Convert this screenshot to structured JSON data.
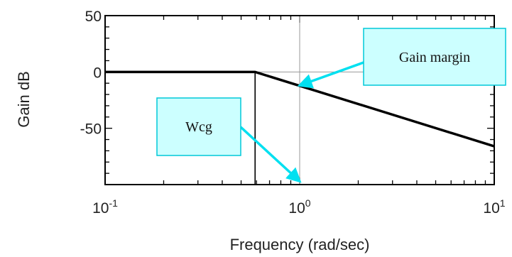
{
  "chart_data": {
    "type": "line",
    "xscale": "log",
    "xlim": [
      0.1,
      10
    ],
    "ylim": [
      -100,
      50
    ],
    "xlabel": "Frequency (rad/sec)",
    "ylabel": "Gain dB",
    "x_ticks": [
      {
        "value": 0.1,
        "base": "10",
        "exp": "-1"
      },
      {
        "value": 1,
        "base": "10",
        "exp": "0"
      },
      {
        "value": 10,
        "base": "10",
        "exp": "1"
      }
    ],
    "y_ticks": [
      {
        "value": 50,
        "label": "50"
      },
      {
        "value": 0,
        "label": "0"
      },
      {
        "value": -50,
        "label": "-50"
      }
    ],
    "series": [
      {
        "color": "#000000",
        "points": [
          {
            "x": 0.1,
            "y": 0
          },
          {
            "x": 0.59,
            "y": 0
          },
          {
            "x": 10,
            "y": -66
          }
        ]
      }
    ],
    "vertical_lines": [
      {
        "x": 0.59,
        "from": -100,
        "to": 0,
        "color": "#000000"
      }
    ],
    "reference_lines": [
      {
        "orientation": "vertical",
        "x": 1,
        "color": "#999999"
      },
      {
        "orientation": "horizontal",
        "y": 0,
        "color": "#999999"
      }
    ],
    "annotations": [
      {
        "text": "Gain margin",
        "arrow_to": {
          "x": 1,
          "y": -12
        }
      },
      {
        "text": "Wcg",
        "arrow_to": {
          "x": 1,
          "y": -97
        }
      }
    ],
    "grid": false,
    "colors": {
      "callout_fill": "#ccffff",
      "callout_border": "#00c8d8",
      "arrow": "#00e0f0"
    }
  }
}
